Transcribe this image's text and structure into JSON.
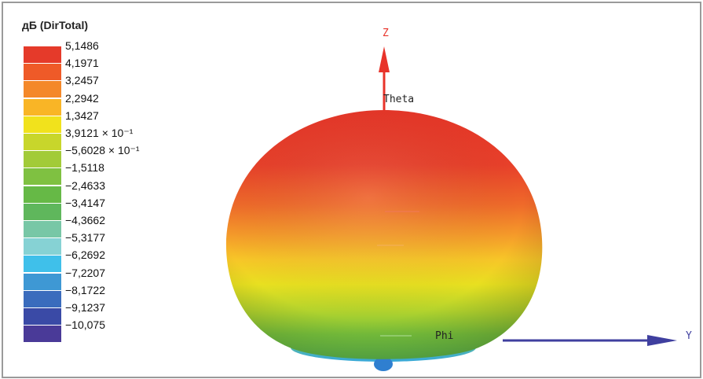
{
  "legend": {
    "title": "дБ (DirTotal)",
    "levels": [
      {
        "label": "5,1486",
        "color": "#e53a2a"
      },
      {
        "label": "4,1971",
        "color": "#ef5a28"
      },
      {
        "label": "3,2457",
        "color": "#f4882a"
      },
      {
        "label": "2,2942",
        "color": "#f9b526"
      },
      {
        "label": "1,3427",
        "color": "#f1e21c"
      },
      {
        "label": "3,9121 × 10⁻¹",
        "color": "#c8d62b"
      },
      {
        "label": "−5,6028 × 10⁻¹",
        "color": "#a2cb38"
      },
      {
        "label": "−1,5118",
        "color": "#7fc141"
      },
      {
        "label": "−2,4633",
        "color": "#66b946"
      },
      {
        "label": "−3,4147",
        "color": "#5fb75c"
      },
      {
        "label": "−4,3662",
        "color": "#78c7a6"
      },
      {
        "label": "−5,3177",
        "color": "#86d2d4"
      },
      {
        "label": "−6,2692",
        "color": "#3fc0ea"
      },
      {
        "label": "−7,2207",
        "color": "#3e98d4"
      },
      {
        "label": "−8,1722",
        "color": "#3a6cbd"
      },
      {
        "label": "−9,1237",
        "color": "#3a4aa6"
      },
      {
        "label": "−10,075",
        "color": "#4a3a98"
      }
    ]
  },
  "plot": {
    "z_axis_label": "Z",
    "y_axis_label": "Y",
    "theta_label": "Theta",
    "phi_label": "Phi",
    "z_axis_color": "#e8332a",
    "y_axis_color": "#3f3f9f"
  }
}
